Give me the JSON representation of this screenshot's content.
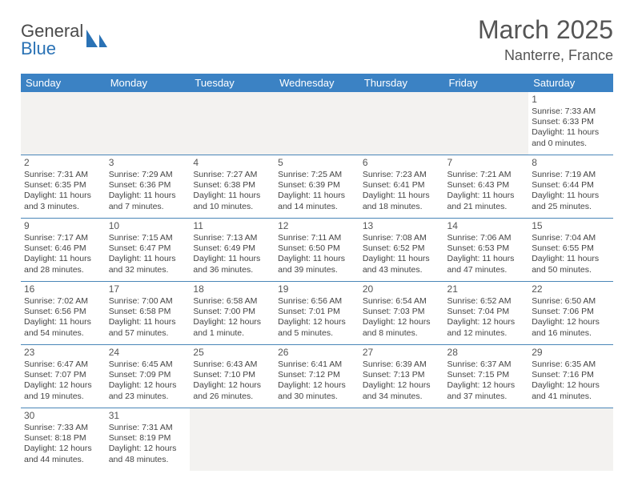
{
  "logo": {
    "word1": "General",
    "word2": "Blue"
  },
  "title": "March 2025",
  "location": "Nanterre, France",
  "colors": {
    "header_bg": "#3b82c4",
    "header_fg": "#ffffff",
    "rule": "#4a86b8",
    "empty_bg": "#f3f2f0",
    "text": "#444444",
    "title_color": "#555555",
    "logo_gray": "#4a4a4a",
    "logo_blue": "#2a72b5"
  },
  "weekdays": [
    "Sunday",
    "Monday",
    "Tuesday",
    "Wednesday",
    "Thursday",
    "Friday",
    "Saturday"
  ],
  "labels": {
    "sunrise": "Sunrise:",
    "sunset": "Sunset:",
    "daylight": "Daylight:"
  },
  "grid": {
    "first_weekday_index": 6,
    "days_in_month": 31
  },
  "days": {
    "1": {
      "sunrise": "7:33 AM",
      "sunset": "6:33 PM",
      "daylight": "11 hours and 0 minutes."
    },
    "2": {
      "sunrise": "7:31 AM",
      "sunset": "6:35 PM",
      "daylight": "11 hours and 3 minutes."
    },
    "3": {
      "sunrise": "7:29 AM",
      "sunset": "6:36 PM",
      "daylight": "11 hours and 7 minutes."
    },
    "4": {
      "sunrise": "7:27 AM",
      "sunset": "6:38 PM",
      "daylight": "11 hours and 10 minutes."
    },
    "5": {
      "sunrise": "7:25 AM",
      "sunset": "6:39 PM",
      "daylight": "11 hours and 14 minutes."
    },
    "6": {
      "sunrise": "7:23 AM",
      "sunset": "6:41 PM",
      "daylight": "11 hours and 18 minutes."
    },
    "7": {
      "sunrise": "7:21 AM",
      "sunset": "6:43 PM",
      "daylight": "11 hours and 21 minutes."
    },
    "8": {
      "sunrise": "7:19 AM",
      "sunset": "6:44 PM",
      "daylight": "11 hours and 25 minutes."
    },
    "9": {
      "sunrise": "7:17 AM",
      "sunset": "6:46 PM",
      "daylight": "11 hours and 28 minutes."
    },
    "10": {
      "sunrise": "7:15 AM",
      "sunset": "6:47 PM",
      "daylight": "11 hours and 32 minutes."
    },
    "11": {
      "sunrise": "7:13 AM",
      "sunset": "6:49 PM",
      "daylight": "11 hours and 36 minutes."
    },
    "12": {
      "sunrise": "7:11 AM",
      "sunset": "6:50 PM",
      "daylight": "11 hours and 39 minutes."
    },
    "13": {
      "sunrise": "7:08 AM",
      "sunset": "6:52 PM",
      "daylight": "11 hours and 43 minutes."
    },
    "14": {
      "sunrise": "7:06 AM",
      "sunset": "6:53 PM",
      "daylight": "11 hours and 47 minutes."
    },
    "15": {
      "sunrise": "7:04 AM",
      "sunset": "6:55 PM",
      "daylight": "11 hours and 50 minutes."
    },
    "16": {
      "sunrise": "7:02 AM",
      "sunset": "6:56 PM",
      "daylight": "11 hours and 54 minutes."
    },
    "17": {
      "sunrise": "7:00 AM",
      "sunset": "6:58 PM",
      "daylight": "11 hours and 57 minutes."
    },
    "18": {
      "sunrise": "6:58 AM",
      "sunset": "7:00 PM",
      "daylight": "12 hours and 1 minute."
    },
    "19": {
      "sunrise": "6:56 AM",
      "sunset": "7:01 PM",
      "daylight": "12 hours and 5 minutes."
    },
    "20": {
      "sunrise": "6:54 AM",
      "sunset": "7:03 PM",
      "daylight": "12 hours and 8 minutes."
    },
    "21": {
      "sunrise": "6:52 AM",
      "sunset": "7:04 PM",
      "daylight": "12 hours and 12 minutes."
    },
    "22": {
      "sunrise": "6:50 AM",
      "sunset": "7:06 PM",
      "daylight": "12 hours and 16 minutes."
    },
    "23": {
      "sunrise": "6:47 AM",
      "sunset": "7:07 PM",
      "daylight": "12 hours and 19 minutes."
    },
    "24": {
      "sunrise": "6:45 AM",
      "sunset": "7:09 PM",
      "daylight": "12 hours and 23 minutes."
    },
    "25": {
      "sunrise": "6:43 AM",
      "sunset": "7:10 PM",
      "daylight": "12 hours and 26 minutes."
    },
    "26": {
      "sunrise": "6:41 AM",
      "sunset": "7:12 PM",
      "daylight": "12 hours and 30 minutes."
    },
    "27": {
      "sunrise": "6:39 AM",
      "sunset": "7:13 PM",
      "daylight": "12 hours and 34 minutes."
    },
    "28": {
      "sunrise": "6:37 AM",
      "sunset": "7:15 PM",
      "daylight": "12 hours and 37 minutes."
    },
    "29": {
      "sunrise": "6:35 AM",
      "sunset": "7:16 PM",
      "daylight": "12 hours and 41 minutes."
    },
    "30": {
      "sunrise": "7:33 AM",
      "sunset": "8:18 PM",
      "daylight": "12 hours and 44 minutes."
    },
    "31": {
      "sunrise": "7:31 AM",
      "sunset": "8:19 PM",
      "daylight": "12 hours and 48 minutes."
    }
  }
}
